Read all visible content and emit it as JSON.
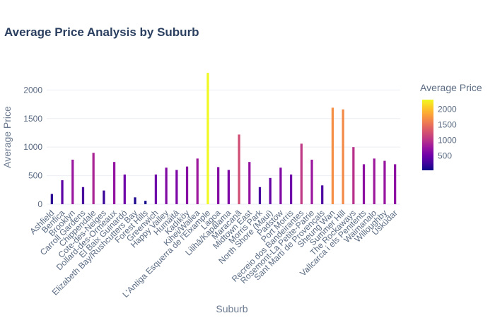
{
  "chart_data": {
    "type": "bar",
    "title": "Average Price Analysis by Suburb",
    "xlabel": "Suburb",
    "ylabel": "Average Price",
    "ylim": [
      0,
      2400
    ],
    "yticks": [
      0,
      500,
      1000,
      1500,
      2000
    ],
    "grid": true,
    "colorbar": {
      "title": "Average Price",
      "range": [
        40,
        2300
      ],
      "ticks": [
        500,
        1000,
        1500,
        2000
      ],
      "colorscale": [
        "#0d0887",
        "#46039f",
        "#7201a8",
        "#9c179e",
        "#bd3786",
        "#d8576b",
        "#ed7953",
        "#fb9f3a",
        "#fdca26",
        "#f0f921"
      ]
    },
    "categories": [
      "Ashfield",
      "Benfica",
      "Brooklyn",
      "Carroll Gardens",
      "Chippendale",
      "Cote-des-Neiges",
      "Dollard-des-Ormeaux",
      "El Baix Guinardó",
      "Elizabeth Bay/Rushcutters Bay",
      "Forest Hills",
      "Greenwich",
      "Happy Valley",
      "Humaitá",
      "Kadıköy",
      "Kihei/Wailea",
      "L'Antiga Esquerra de l'Eixample",
      "Lagoa",
      "Lilihā/Kapālama",
      "Maracanã",
      "Midtown East",
      "Morris Park",
      "North Shore (Maui)",
      "Padstow",
      "Port Morris",
      "Recreio dos Bandeirantes",
      "Rosemont-La Petite-Patrie",
      "Sant Martí de Provençals",
      "Sheung Wan",
      "Summer Hill",
      "The Rockaways",
      "Vallcarca i els Penitents",
      "Waimanalo",
      "Willoughby",
      "Üsküdar"
    ],
    "values": [
      180,
      420,
      780,
      300,
      900,
      240,
      740,
      520,
      120,
      60,
      520,
      640,
      600,
      660,
      800,
      2300,
      650,
      600,
      1220,
      740,
      300,
      460,
      640,
      520,
      1060,
      780,
      330,
      1690,
      1660,
      1000,
      700,
      800,
      760,
      700
    ]
  }
}
